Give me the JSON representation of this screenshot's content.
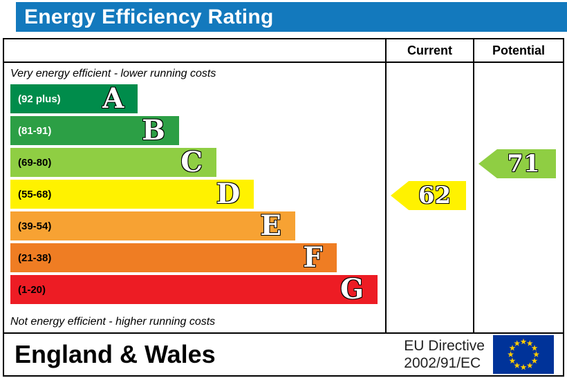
{
  "title": "Energy Efficiency Rating",
  "colors": {
    "title_bar": "#1379bd",
    "border": "#000000"
  },
  "header": {
    "current_label": "Current",
    "potential_label": "Potential"
  },
  "chart_data": {
    "type": "bar",
    "title": "Energy Efficiency Rating",
    "top_note": "Very energy efficient - lower running costs",
    "bottom_note": "Not energy efficient - higher running costs",
    "bands": [
      {
        "letter": "A",
        "range_label": "(92 plus)",
        "color": "#008c4b",
        "width_pct": 34,
        "text_color": "#ffffff"
      },
      {
        "letter": "B",
        "range_label": "(81-91)",
        "color": "#2c9f45",
        "width_pct": 45,
        "text_color": "#ffffff"
      },
      {
        "letter": "C",
        "range_label": "(69-80)",
        "color": "#8fce43",
        "width_pct": 55,
        "text_color": "#000000"
      },
      {
        "letter": "D",
        "range_label": "(55-68)",
        "color": "#fff200",
        "width_pct": 65,
        "text_color": "#000000"
      },
      {
        "letter": "E",
        "range_label": "(39-54)",
        "color": "#f7a233",
        "width_pct": 76,
        "text_color": "#000000"
      },
      {
        "letter": "F",
        "range_label": "(21-38)",
        "color": "#ef7d23",
        "width_pct": 87,
        "text_color": "#000000"
      },
      {
        "letter": "G",
        "range_label": "(1-20)",
        "color": "#ed1c24",
        "width_pct": 98,
        "text_color": "#000000"
      }
    ],
    "current": {
      "value": 62,
      "band": "D",
      "band_index": 3,
      "color": "#fff200"
    },
    "potential": {
      "value": 71,
      "band": "C",
      "band_index": 2,
      "color": "#8fce43"
    }
  },
  "footer": {
    "region": "England & Wales",
    "directive_line1": "EU Directive",
    "directive_line2": "2002/91/EC",
    "eu_flag_colors": {
      "background": "#003399",
      "stars": "#ffcc00"
    }
  }
}
